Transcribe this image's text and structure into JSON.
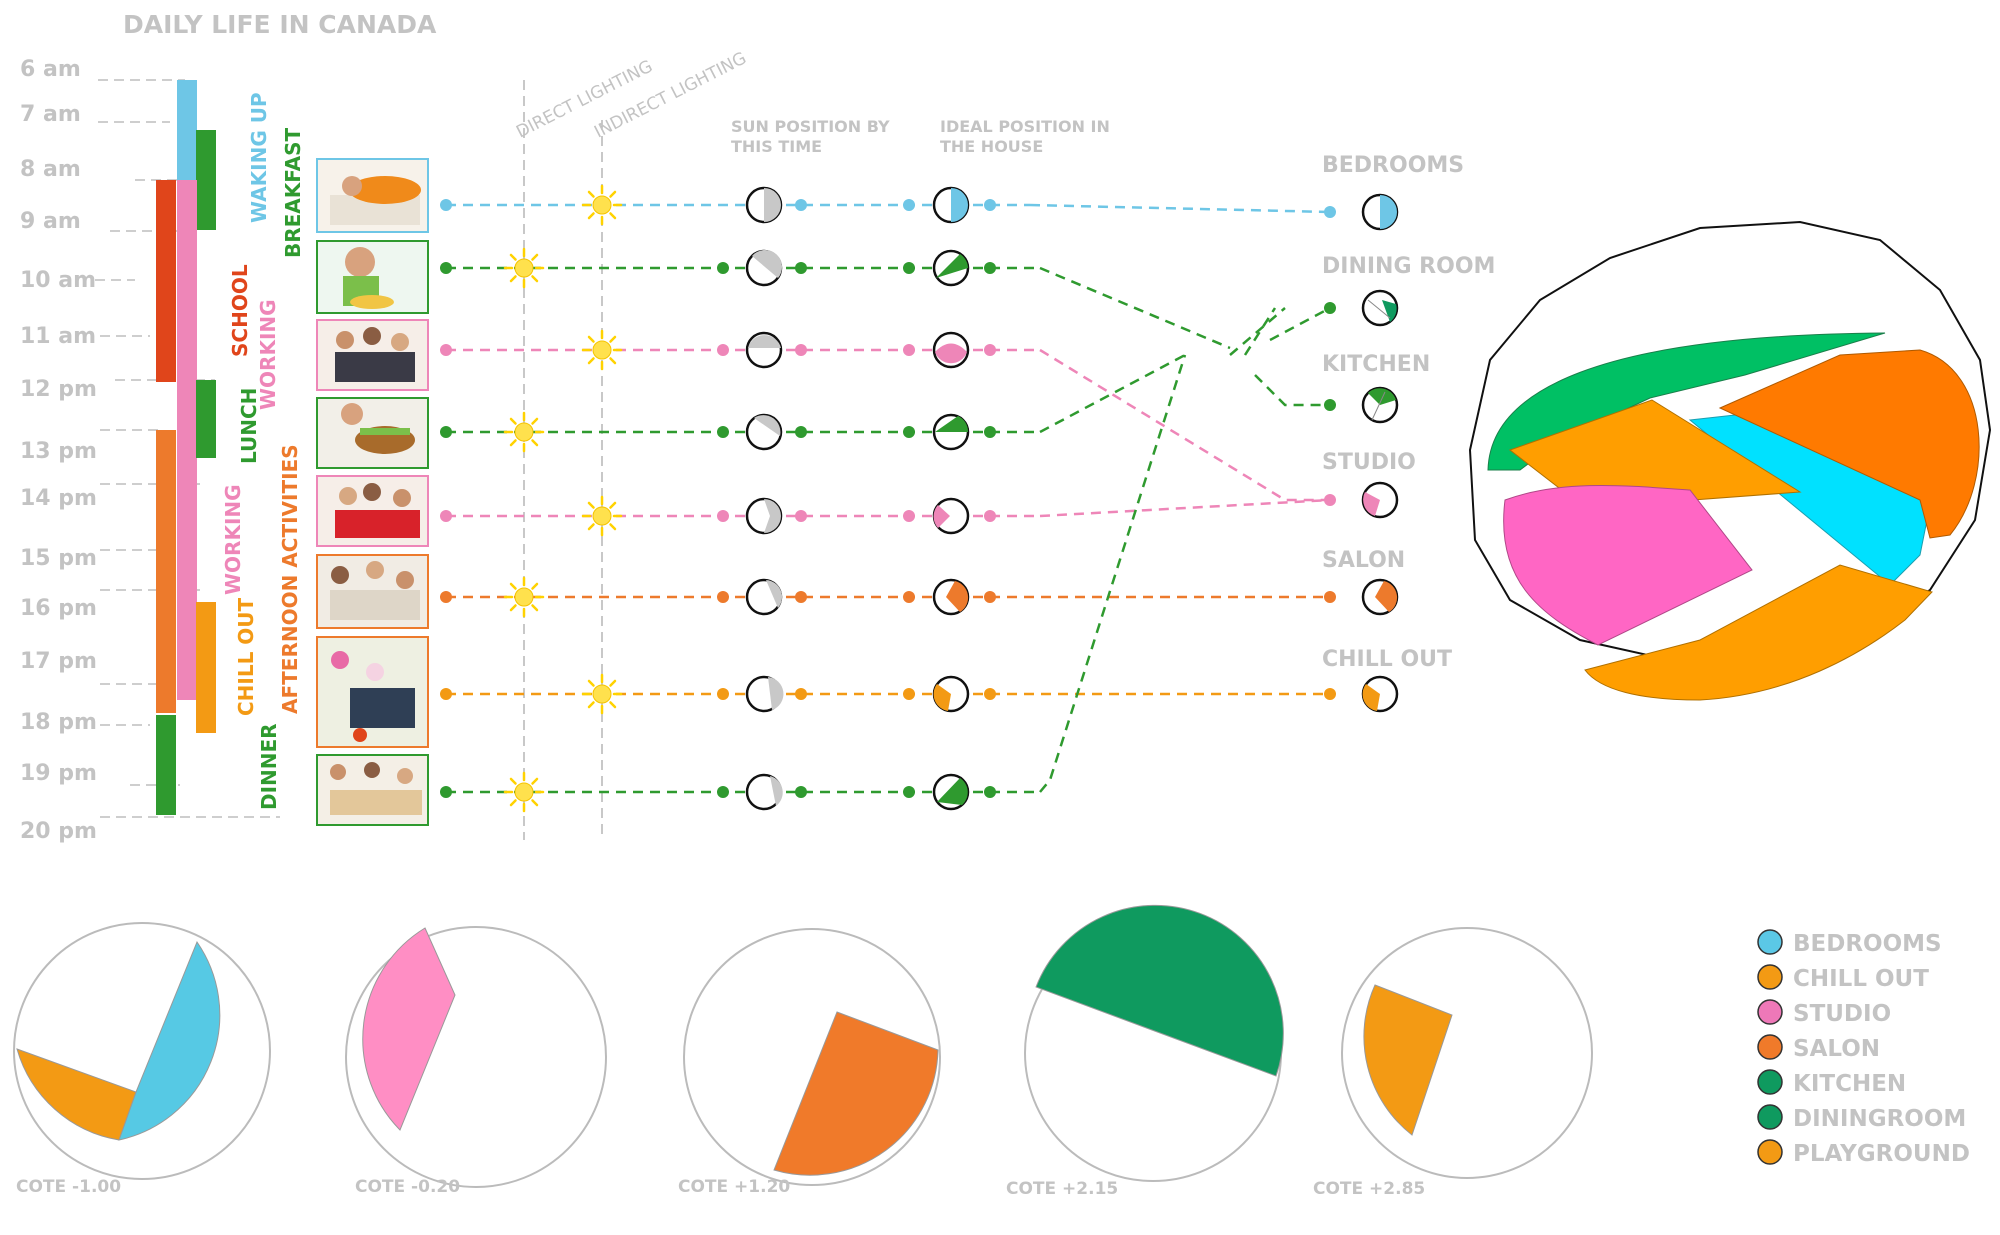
{
  "title": "DAILY LIFE IN CANADA",
  "hours": [
    "6 am",
    "7 am",
    "8 am",
    "9 am",
    "10 am",
    "11 am",
    "12 pm",
    "13 pm",
    "14 pm",
    "15 pm",
    "16 pm",
    "17 pm",
    "18 pm",
    "19 pm",
    "20 pm"
  ],
  "activities": [
    {
      "label": "WAKING UP",
      "color": "#6ec6e6"
    },
    {
      "label": "BREAKFAST",
      "color": "#2f9a2f"
    },
    {
      "label": "SCHOOL",
      "color": "#e0451b"
    },
    {
      "label": "WORKING",
      "color": "#ee86b8"
    },
    {
      "label": "LUNCH",
      "color": "#2f9a2f"
    },
    {
      "label": "WORKING",
      "color": "#ee86b8"
    },
    {
      "label": "AFTERNOON ACTIVITIES",
      "color": "#ed7a2c"
    },
    {
      "label": "CHILL OUT",
      "color": "#f39a14"
    },
    {
      "label": "DINNER",
      "color": "#2f9a2f"
    }
  ],
  "lighting": {
    "direct": "DIRECT LIGHTING",
    "indirect": "INDIRECT LIGHTING"
  },
  "column_headers": {
    "sun": [
      "SUN POSITION BY",
      "THIS TIME"
    ],
    "ideal": [
      "IDEAL POSITION IN",
      "THE HOUSE"
    ]
  },
  "rooms": [
    "BEDROOMS",
    "DINING ROOM",
    "KITCHEN",
    "STUDIO",
    "SALON",
    "CHILL OUT"
  ],
  "levels": [
    "COTE -1.00",
    "COTE -0.20",
    "COTE +1.20",
    "COTE +2.15",
    "COTE +2.85"
  ],
  "legend": [
    {
      "label": "BEDROOMS",
      "color": "#5bc8e6"
    },
    {
      "label": "CHILL OUT",
      "color": "#f39a14"
    },
    {
      "label": "STUDIO",
      "color": "#ee78b8"
    },
    {
      "label": "SALON",
      "color": "#f07a2a"
    },
    {
      "label": "KITCHEN",
      "color": "#0f9a5f"
    },
    {
      "label": "DININGROOM",
      "color": "#0f9a5f"
    },
    {
      "label": "PLAYGROUND",
      "color": "#f39a14"
    }
  ],
  "colors": {
    "blue": "#6ec6e6",
    "green": "#2f9a2f",
    "pink": "#ee86b8",
    "orange": "#ed7a2c",
    "amber": "#f39a14",
    "red": "#e0451b",
    "sun": "#ffe14d",
    "grey_text": "#c3c3c3"
  }
}
